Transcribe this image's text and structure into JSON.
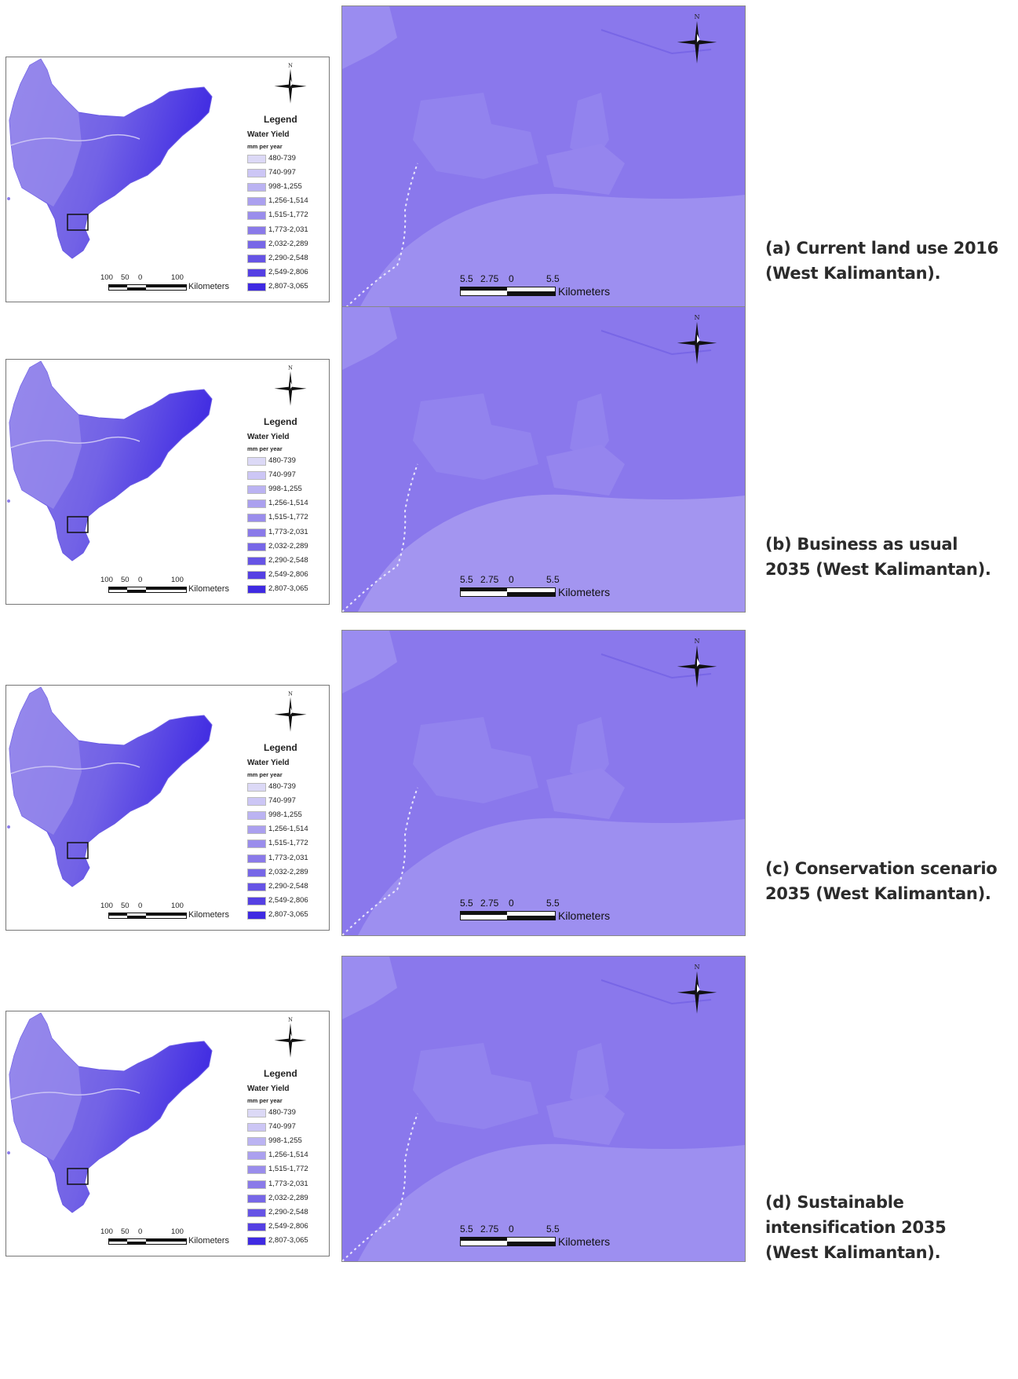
{
  "legend": {
    "title": "Legend",
    "variable": "Water Yield",
    "unit": "mm per year",
    "classes": [
      {
        "label": "480-739",
        "color": "#dcd9f6"
      },
      {
        "label": "740-997",
        "color": "#ccc6f5"
      },
      {
        "label": "998-1,255",
        "color": "#bbb3f2"
      },
      {
        "label": "1,256-1,514",
        "color": "#aba0ef"
      },
      {
        "label": "1,515-1,772",
        "color": "#9a8dec"
      },
      {
        "label": "1,773-2,031",
        "color": "#8a7ae9"
      },
      {
        "label": "2,032-2,289",
        "color": "#7767e7"
      },
      {
        "label": "2,290-2,548",
        "color": "#6654e5"
      },
      {
        "label": "2,549-2,806",
        "color": "#5540e3"
      },
      {
        "label": "2,807-3,065",
        "color": "#3f2ae2"
      }
    ]
  },
  "north_label": "N",
  "small_scale": {
    "ticks": [
      "100",
      "50",
      "0",
      "100"
    ],
    "unit": "Kilometers"
  },
  "big_scale": {
    "ticks": [
      "5.5",
      "2.75",
      "0",
      "5.5"
    ],
    "unit": "Kilometers"
  },
  "panels": [
    {
      "caption_lines": [
        "(a) Current land use 2016",
        "(West Kalimantan)."
      ]
    },
    {
      "caption_lines": [
        "(b) Business as usual",
        "2035 (West Kalimantan)."
      ]
    },
    {
      "caption_lines": [
        "(c) Conservation scenario",
        "2035 (West Kalimantan)."
      ]
    },
    {
      "caption_lines": [
        "(d) Sustainable",
        "intensification 2035",
        "(West Kalimantan)."
      ]
    }
  ]
}
